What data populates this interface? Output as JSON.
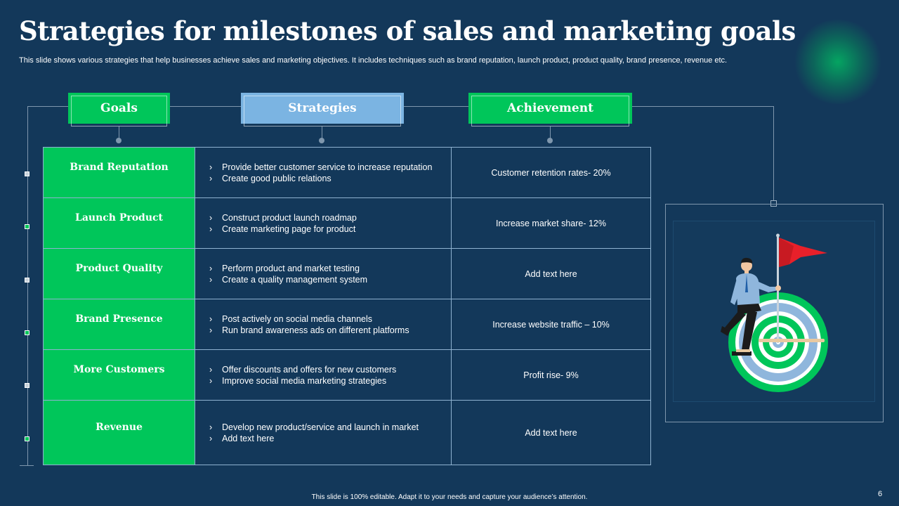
{
  "title": "Strategies for milestones of sales and marketing goals",
  "subtitle": "This slide shows various strategies that help businesses achieve sales and marketing objectives. It includes techniques such as brand reputation, launch product, product quality, brand presence, revenue etc.",
  "headers": {
    "goals": "Goals",
    "strategies": "Strategies",
    "achievement": "Achievement"
  },
  "rows": [
    {
      "goal": "Brand Reputation",
      "strategies": [
        "Provide better customer service to increase reputation",
        "Create good public relations"
      ],
      "achievement": "Customer retention rates- 20%"
    },
    {
      "goal": "Launch Product",
      "strategies": [
        "Construct product launch roadmap",
        "Create marketing page for product"
      ],
      "achievement": "Increase market share- 12%"
    },
    {
      "goal": "Product Quality",
      "strategies": [
        "Perform product and market testing",
        "Create a quality management system"
      ],
      "achievement": "Add text here"
    },
    {
      "goal": "Brand Presence",
      "strategies": [
        "Post actively on social media channels",
        "Run brand awareness ads on different platforms"
      ],
      "achievement": "Increase website traffic – 10%"
    },
    {
      "goal": "More Customers",
      "strategies": [
        "Offer discounts and offers for new customers",
        "Improve social media marketing strategies"
      ],
      "achievement": "Profit rise- 9%"
    },
    {
      "goal": "Revenue",
      "strategies": [
        "Develop new product/service and launch in market",
        "Add text here"
      ],
      "achievement": "Add text here"
    }
  ],
  "illustration": {
    "icon": "businessman-target-flag-icon"
  },
  "bullet_glyph": "›",
  "footer": "This slide is 100% editable. Adapt it to your needs and capture your audience’s attention.",
  "page_number": "6",
  "colors": {
    "background": "#13385a",
    "green": "#00c65a",
    "blue": "#7bb4e2",
    "flag": "#e8202a"
  }
}
